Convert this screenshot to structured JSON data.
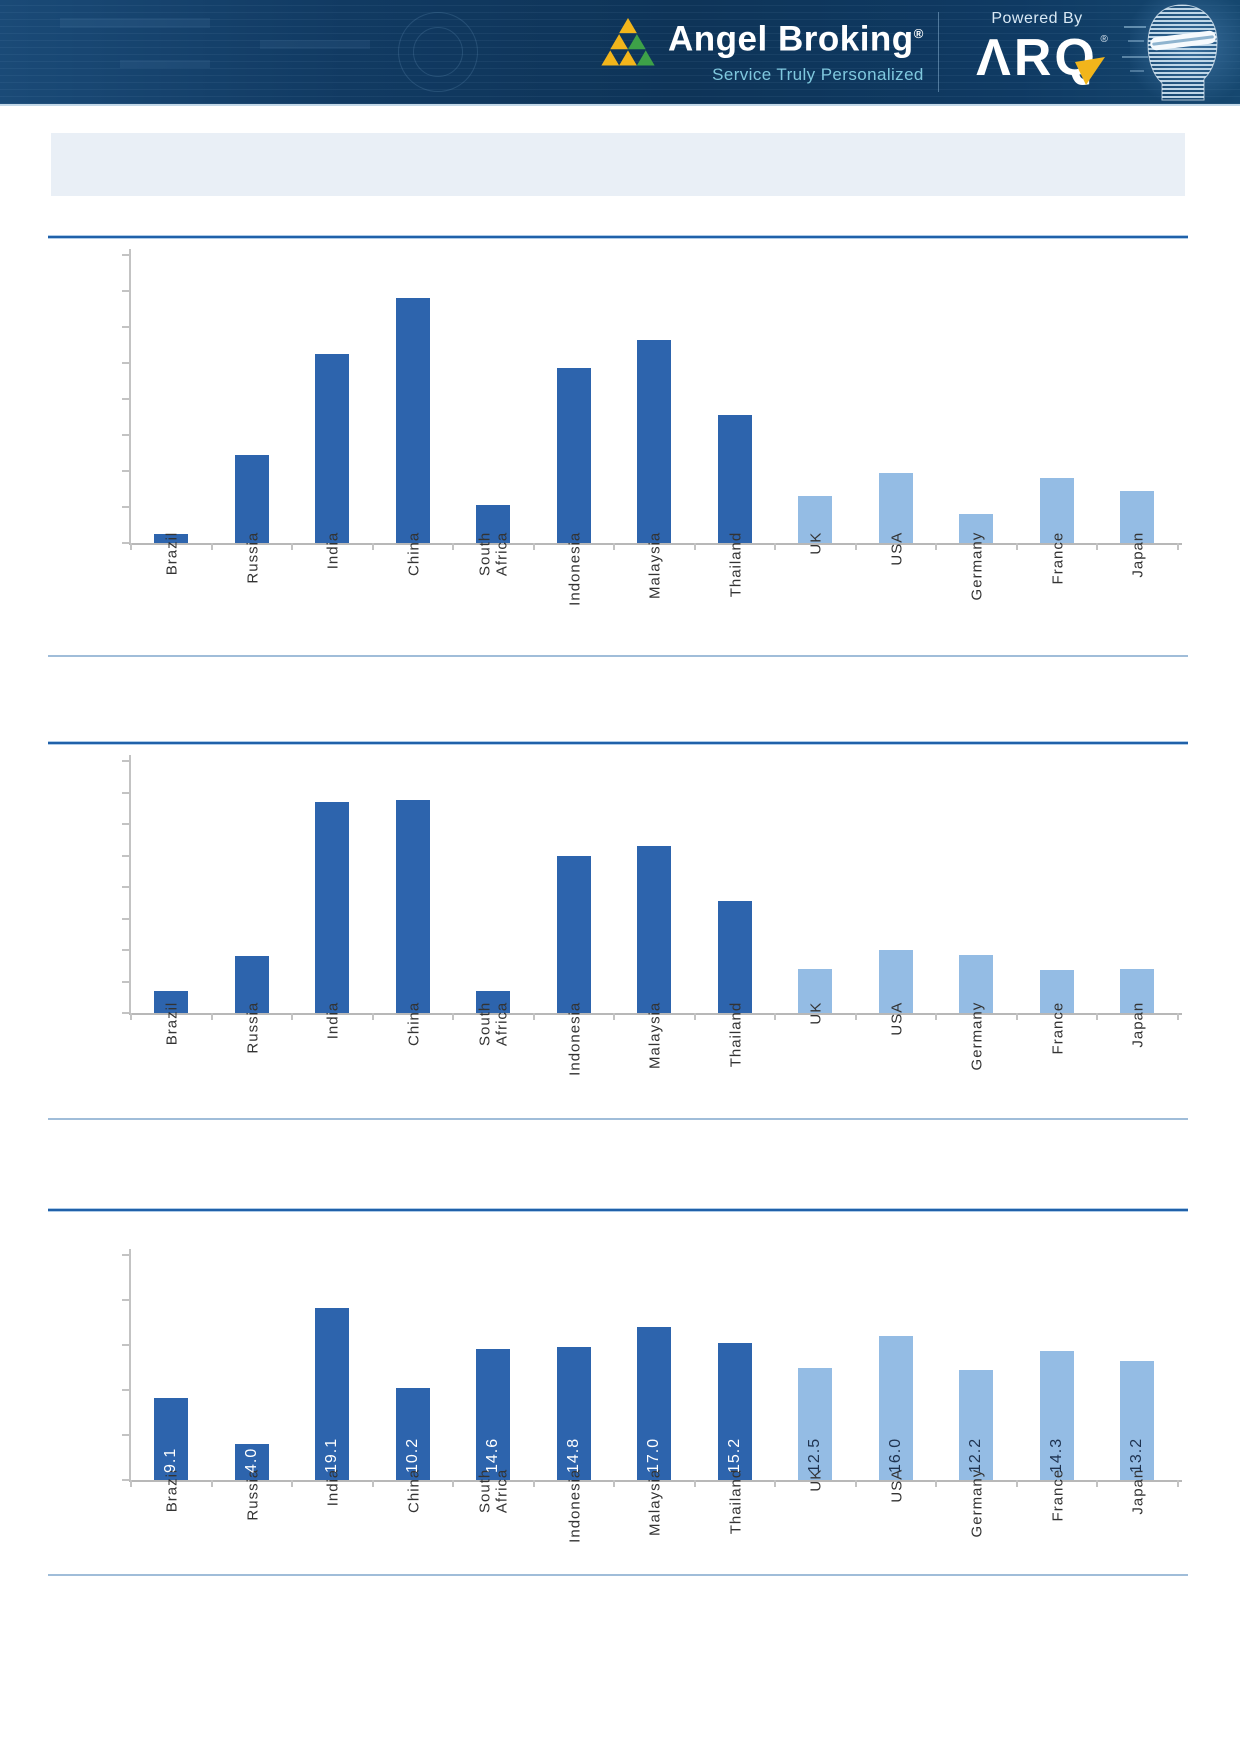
{
  "header": {
    "brand": "Angel Broking",
    "brand_reg": "®",
    "tagline": "Service Truly Personalized",
    "powered_by": "Powered By",
    "arq_wordmark": "ΛRQ",
    "arq_reg": "®",
    "colors": {
      "background_navy": "#0f3a63",
      "logo_gold": "#f2b51b",
      "logo_green": "#3da148",
      "tagline_blue": "#7fc8de",
      "text": "#ffffff"
    }
  },
  "title_band": {
    "text": "",
    "background": "#e9eff6"
  },
  "shared": {
    "bar_color_emerging": "#2d64ad",
    "bar_color_developed": "#94bce4",
    "emerging_count": 8,
    "separator_color": "#2061a9",
    "thin_rule_color": "#8fb2d2",
    "axis_color": "#c3c3c3",
    "value_label_on_dark": "#ffffff",
    "value_label_on_light": "#1f3350"
  },
  "chart_data": [
    {
      "type": "bar",
      "title": "",
      "categories": [
        "Brazil",
        "Russia",
        "India",
        "China",
        "South\nAfrica",
        "Indonesia",
        "Malaysia",
        "Thailand",
        "UK",
        "USA",
        "Germany",
        "France",
        "Japan"
      ],
      "values": [
        0.25,
        2.45,
        5.25,
        6.8,
        1.05,
        4.85,
        5.65,
        3.55,
        1.3,
        1.95,
        0.8,
        1.8,
        1.45
      ],
      "ylim": [
        0,
        8
      ],
      "tick_count": 9,
      "y_axis_labeled": false,
      "value_unit": "gridline intervals (y-axis unlabeled in source)",
      "data_labels": null,
      "grid": false,
      "legend": false
    },
    {
      "type": "bar",
      "title": "",
      "categories": [
        "Brazil",
        "Russia",
        "India",
        "China",
        "South Africa",
        "Indonesia",
        "Malaysia",
        "Thailand",
        "UK",
        "USA",
        "Germany",
        "France",
        "Japan"
      ],
      "values": [
        0.7,
        1.8,
        6.7,
        6.75,
        0.7,
        5.0,
        5.3,
        3.55,
        1.4,
        2.0,
        1.85,
        1.35,
        1.4
      ],
      "ylim": [
        0,
        8
      ],
      "tick_count": 9,
      "y_axis_labeled": false,
      "value_unit": "gridline intervals (y-axis unlabeled in source)",
      "data_labels": null,
      "grid": false,
      "legend": false
    },
    {
      "type": "bar",
      "title": "",
      "categories": [
        "Brazil",
        "Russia",
        "India",
        "China",
        "South\nAfrica",
        "Indonesia",
        "Malaysia",
        "Thailand",
        "UK",
        "USA",
        "Germany",
        "France",
        "Japan"
      ],
      "values": [
        9.1,
        4.0,
        19.1,
        10.2,
        14.6,
        14.8,
        17.0,
        15.2,
        12.5,
        16.0,
        12.2,
        14.3,
        13.2
      ],
      "ylim": [
        0,
        25
      ],
      "tick_count": 6,
      "y_axis_labeled": false,
      "value_unit": "ratio (data labels shown on bars)",
      "data_labels": [
        "9.1",
        "4.0",
        "19.1",
        "10.2",
        "14.6",
        "14.8",
        "17.0",
        "15.2",
        "12.5",
        "16.0",
        "12.2",
        "14.3",
        "13.2"
      ],
      "grid": false,
      "legend": false
    }
  ]
}
